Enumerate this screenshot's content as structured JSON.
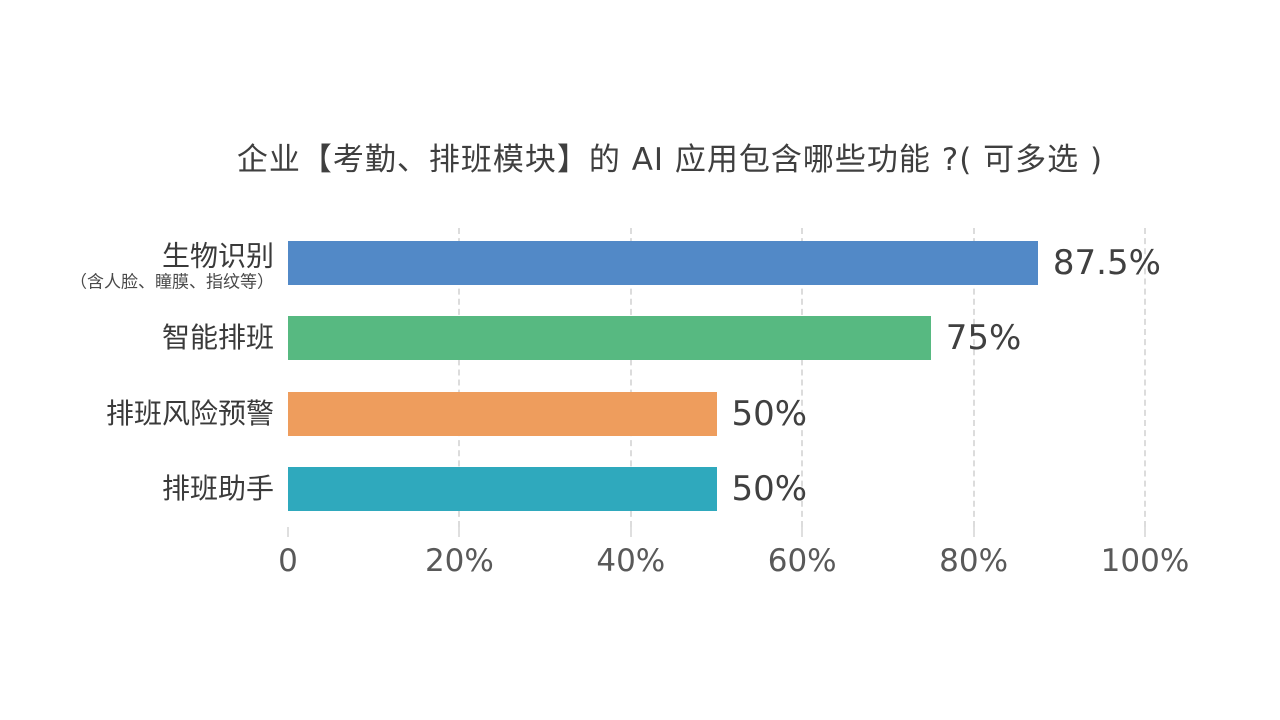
{
  "chart_data": {
    "type": "bar",
    "orientation": "horizontal",
    "title": "企业【考勤、排班模块】的 AI 应用包含哪些功能 ?( 可多选 )",
    "categories": [
      "生物识别",
      "智能排班",
      "排班风险预警",
      "排班助手"
    ],
    "category_sublabels": [
      "（含人脸、瞳膜、指纹等）",
      "",
      "",
      ""
    ],
    "values": [
      87.5,
      75,
      50,
      50
    ],
    "value_labels": [
      "87.5%",
      "75%",
      "50%",
      "50%"
    ],
    "bar_colors": [
      "#5289c7",
      "#57b981",
      "#ee9d5d",
      "#2fa9bd"
    ],
    "x_axis": {
      "min": 0,
      "max": 100,
      "ticks": [
        0,
        20,
        40,
        60,
        80,
        100
      ],
      "tick_labels": [
        "0",
        "20%",
        "40%",
        "60%",
        "80%",
        "100%"
      ],
      "gridline_style": "dashed"
    },
    "legend": "none",
    "background": "#ffffff"
  },
  "style": {
    "gridline_color": "#dcdcdc",
    "tick_color": "#bfbfbf",
    "axis_label_color": "#595959",
    "title_color": "#3f3f3f",
    "value_label_color": "#404040"
  }
}
